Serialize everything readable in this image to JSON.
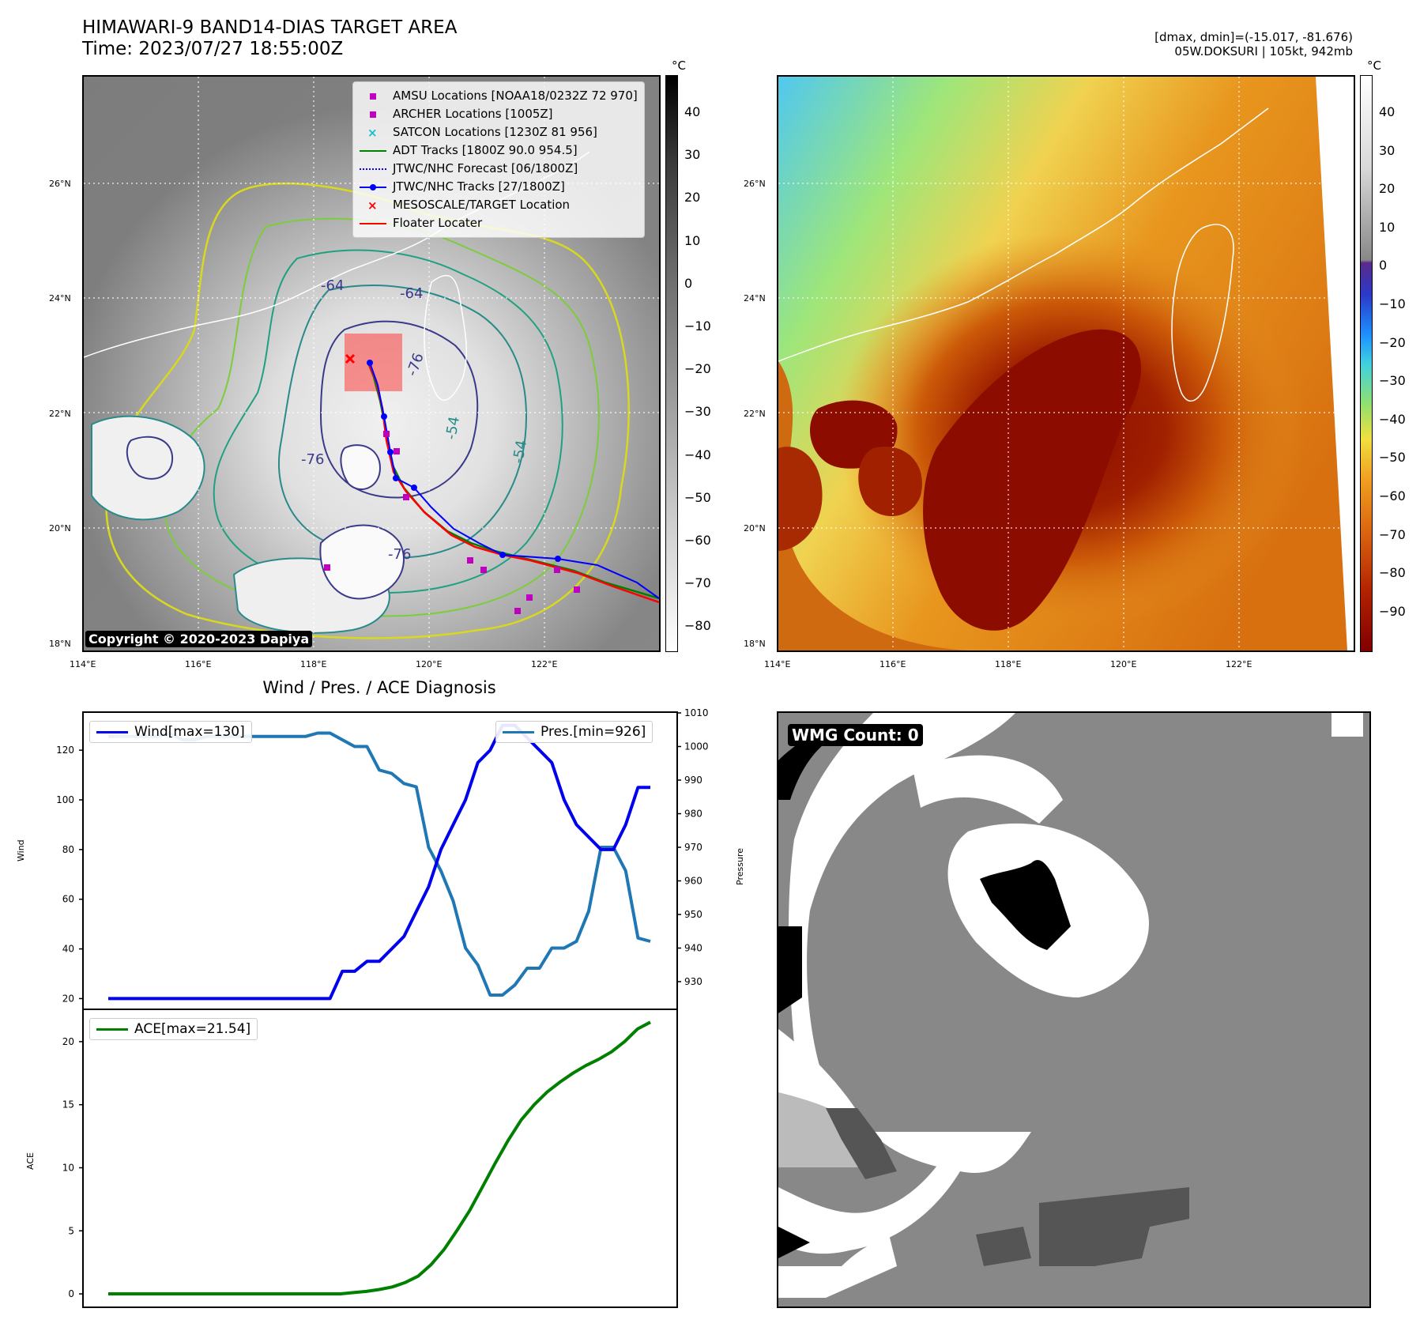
{
  "header": {
    "title_line1": "HIMAWARI-9 BAND14-DIAS TARGET AREA",
    "title_line2": "Time: 2023/07/27 18:55:00Z",
    "right_line1": "[dmax, dmin]=(-15.017, -81.676)",
    "right_line2": "05W.DOKSURI | 105kt, 942mb"
  },
  "map": {
    "lat_labels": [
      "26°N",
      "24°N",
      "22°N",
      "20°N",
      "18°N"
    ],
    "lon_labels": [
      "114°E",
      "116°E",
      "118°E",
      "120°E",
      "122°E"
    ],
    "copyright": "Copyright © 2020-2023 Dapiya",
    "contour_labels": [
      "-64",
      "-64",
      "-76",
      "-76",
      "-76",
      "-54",
      "-54"
    ],
    "legend": [
      {
        "label": "AMSU Locations [NOAA18/0232Z 72 970]",
        "marker": "square",
        "color": "#bf00bf"
      },
      {
        "label": "ARCHER Locations [1005Z]",
        "marker": "square",
        "color": "#bf00bf"
      },
      {
        "label": "SATCON Locations [1230Z 81 956]",
        "marker": "x",
        "color": "#17becf"
      },
      {
        "label": "ADT Tracks [1800Z 90.0 954.5]",
        "marker": "line",
        "color": "#008000"
      },
      {
        "label": "JTWC/NHC Forecast [06/1800Z]",
        "marker": "dotted",
        "color": "#0000ff"
      },
      {
        "label": "JTWC/NHC Tracks [27/1800Z]",
        "marker": "line-dot",
        "color": "#0000ff"
      },
      {
        "label": "MESOSCALE/TARGET Location",
        "marker": "x",
        "color": "#ff0000"
      },
      {
        "label": "Floater Locater",
        "marker": "line",
        "color": "#ff0000"
      }
    ]
  },
  "colorbar_left": {
    "unit": "°C",
    "ticks": [
      "40",
      "30",
      "20",
      "10",
      "0",
      "−10",
      "−20",
      "−30",
      "−40",
      "−50",
      "−60",
      "−70",
      "−80"
    ]
  },
  "colorbar_right": {
    "unit": "°C",
    "ticks": [
      "40",
      "30",
      "20",
      "10",
      "0",
      "−10",
      "−20",
      "−30",
      "−40",
      "−50",
      "−60",
      "−70",
      "−80",
      "−90"
    ]
  },
  "wmg": {
    "count_label": "WMG Count: 0"
  },
  "chart_data": [
    {
      "type": "line",
      "title": "Wind / Pres. / ACE Diagnosis",
      "ylabel": "Wind",
      "y2label": "Pressure",
      "ylim": [
        16,
        135
      ],
      "y2lim": [
        922,
        1010
      ],
      "yticks": [
        20,
        40,
        60,
        80,
        100,
        120
      ],
      "y2ticks": [
        930,
        940,
        950,
        960,
        970,
        980,
        990,
        1000,
        1010
      ],
      "series": [
        {
          "name": "Wind[max=130]",
          "axis": "left",
          "color": "#0000ee",
          "values": [
            20,
            20,
            20,
            20,
            20,
            20,
            20,
            20,
            20,
            20,
            20,
            20,
            20,
            20,
            20,
            20,
            20,
            20,
            20,
            31,
            31,
            35,
            35,
            40,
            45,
            55,
            65,
            80,
            90,
            100,
            115,
            120,
            130,
            130,
            125,
            120,
            115,
            100,
            90,
            85,
            80,
            80,
            90,
            105,
            105
          ]
        },
        {
          "name": "Pres.[min=926]",
          "axis": "right",
          "color": "#1f77b4",
          "values": [
            1003,
            1003,
            1003,
            1003,
            1003,
            1004,
            1002,
            1002,
            1003,
            1003,
            1003,
            1003,
            1003,
            1003,
            1003,
            1003,
            1003,
            1004,
            1004,
            1002,
            1000,
            1000,
            993,
            992,
            989,
            988,
            970,
            963,
            954,
            940,
            935,
            926,
            926,
            929,
            934,
            934,
            940,
            940,
            942,
            951,
            970,
            970,
            963,
            943,
            942
          ]
        }
      ]
    },
    {
      "type": "line",
      "ylabel": "ACE",
      "ylim": [
        -1,
        22.5
      ],
      "yticks": [
        0,
        5,
        10,
        15,
        20
      ],
      "series": [
        {
          "name": "ACE[max=21.54]",
          "color": "#008000",
          "values": [
            0,
            0,
            0,
            0,
            0,
            0,
            0,
            0,
            0,
            0,
            0,
            0,
            0,
            0,
            0,
            0,
            0,
            0,
            0,
            0.1,
            0.2,
            0.35,
            0.55,
            0.9,
            1.4,
            2.3,
            3.5,
            5.0,
            6.6,
            8.5,
            10.4,
            12.2,
            13.8,
            15.0,
            16.0,
            16.8,
            17.5,
            18.1,
            18.6,
            19.2,
            20.0,
            21.0,
            21.54
          ]
        }
      ]
    }
  ]
}
